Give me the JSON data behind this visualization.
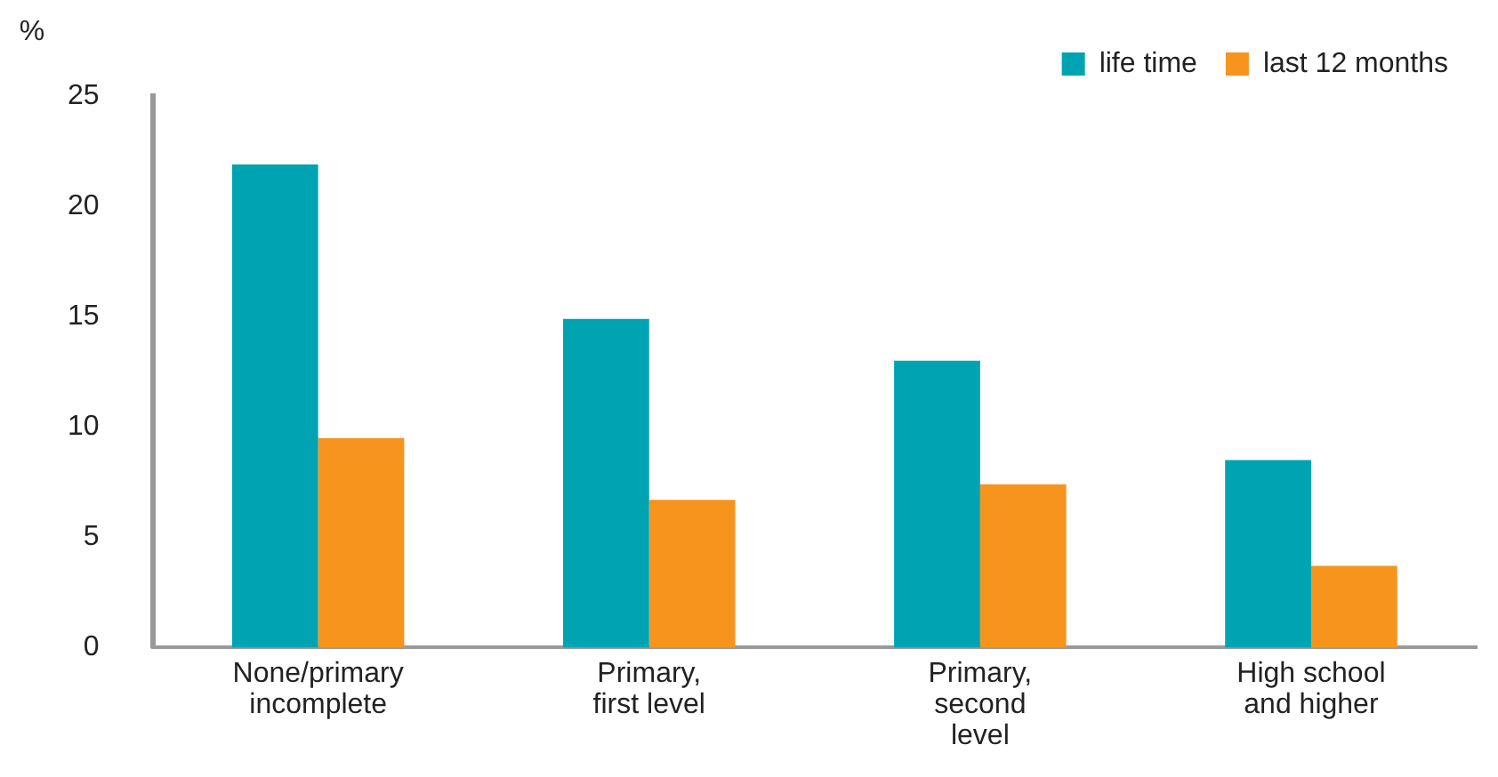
{
  "chart_data": {
    "type": "bar",
    "ylabel": "%",
    "categories": [
      "None/primary\nincomplete",
      "Primary,\nfirst level",
      "Primary,\nsecond\nlevel",
      "High school\nand higher"
    ],
    "series": [
      {
        "name": "life time",
        "color": "#00a3b1",
        "values": [
          21.9,
          14.9,
          13.0,
          8.5
        ]
      },
      {
        "name": "last 12 months",
        "color": "#f7941d",
        "values": [
          9.5,
          6.7,
          7.4,
          3.7
        ]
      }
    ],
    "ylim": [
      0,
      25
    ],
    "yticks": [
      0,
      5,
      10,
      15,
      20,
      25
    ],
    "grid": false,
    "legend": "top right"
  }
}
